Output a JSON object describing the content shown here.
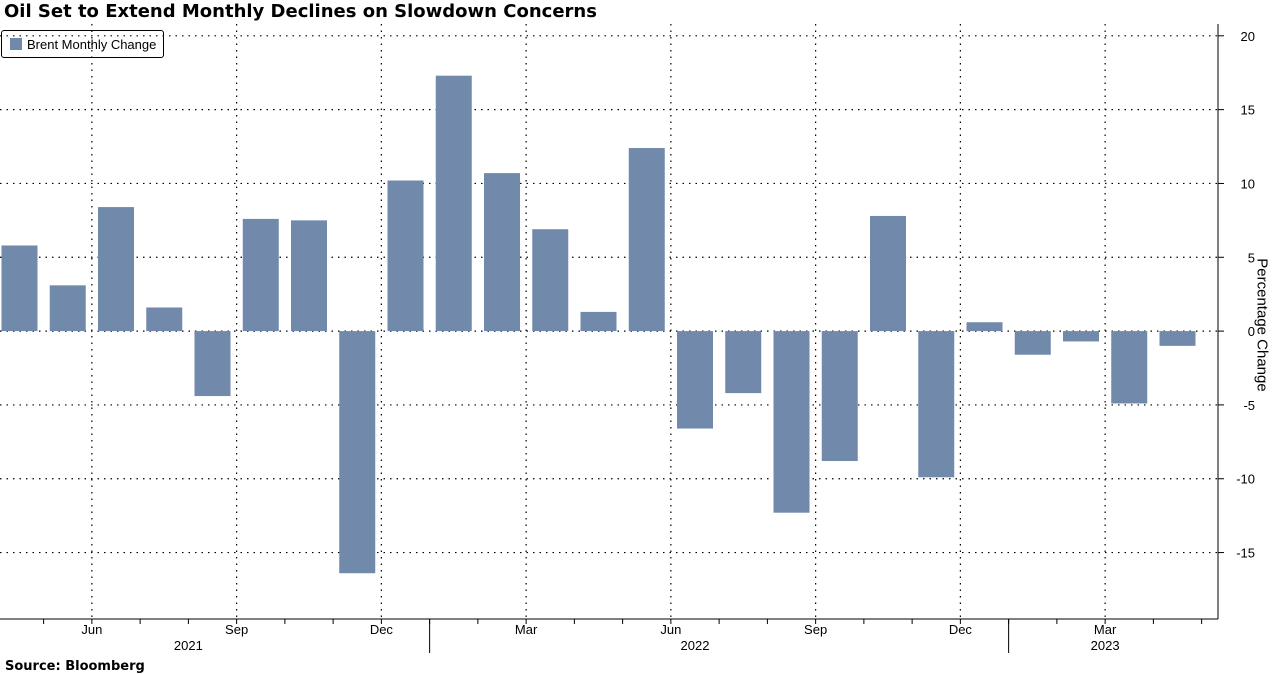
{
  "chart_data": {
    "type": "bar",
    "title": "Oil Set to Extend Monthly Declines on Slowdown Concerns",
    "source": "Source: Bloomberg",
    "legend": {
      "label": "Brent Monthly Change",
      "color": "#7189ab",
      "position": "top-left"
    },
    "ylabel": "Percentage Change",
    "xlabel": "",
    "ylim": [
      -19.5,
      20.8
    ],
    "yticks": [
      20,
      15,
      10,
      5,
      0,
      -5,
      -10,
      -15
    ],
    "grid": true,
    "categories": [
      "Apr 2021",
      "May 2021",
      "Jun 2021",
      "Jul 2021",
      "Aug 2021",
      "Sep 2021",
      "Oct 2021",
      "Nov 2021",
      "Dec 2021",
      "Jan 2022",
      "Feb 2022",
      "Mar 2022",
      "Apr 2022",
      "May 2022",
      "Jun 2022",
      "Jul 2022",
      "Aug 2022",
      "Sep 2022",
      "Oct 2022",
      "Nov 2022",
      "Dec 2022",
      "Jan 2023",
      "Feb 2023",
      "Mar 2023",
      "Apr 2023"
    ],
    "values": [
      5.8,
      3.1,
      8.4,
      1.6,
      -4.4,
      7.6,
      7.5,
      -16.4,
      10.2,
      17.3,
      10.7,
      6.9,
      1.3,
      12.4,
      -6.6,
      -4.2,
      -12.3,
      -8.8,
      7.8,
      -9.9,
      0.6,
      -1.6,
      -0.7,
      -4.9,
      -1.0
    ],
    "month_ticks": [
      {
        "label": "Jun",
        "index": 2
      },
      {
        "label": "Sep",
        "index": 5
      },
      {
        "label": "Dec",
        "index": 8
      },
      {
        "label": "Mar",
        "index": 11
      },
      {
        "label": "Jun",
        "index": 14
      },
      {
        "label": "Sep",
        "index": 17
      },
      {
        "label": "Dec",
        "index": 20
      },
      {
        "label": "Mar",
        "index": 23
      }
    ],
    "year_labels": [
      {
        "label": "2021",
        "center_index": 4
      },
      {
        "label": "2022",
        "center_index": 14.5
      },
      {
        "label": "2023",
        "center_index": 23
      }
    ],
    "year_dividers": [
      8.5,
      20.5
    ]
  }
}
